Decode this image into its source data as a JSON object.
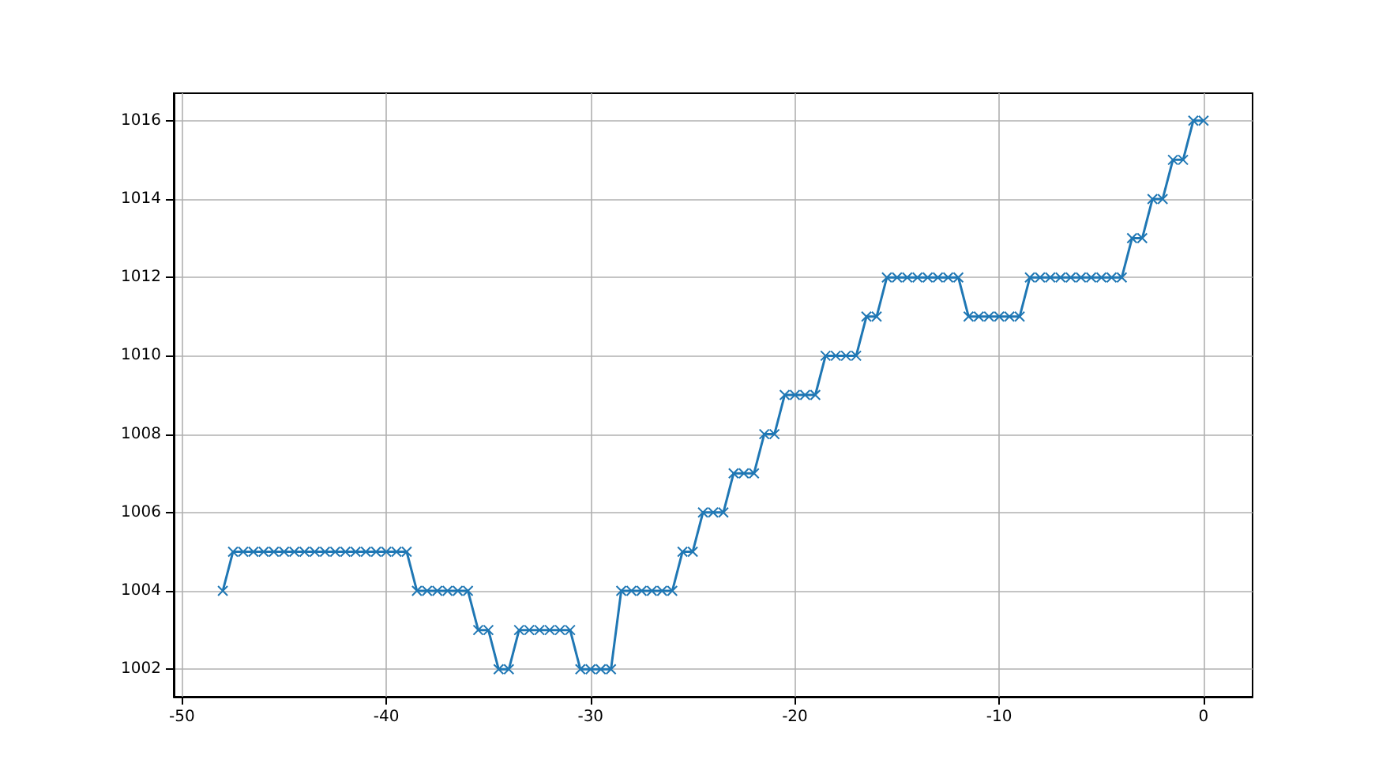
{
  "chart_data": {
    "type": "line",
    "x": [
      -48,
      -47.5,
      -47,
      -46.5,
      -46,
      -45.5,
      -45,
      -44.5,
      -44,
      -43.5,
      -43,
      -42.5,
      -42,
      -41.5,
      -41,
      -40.5,
      -40,
      -39.5,
      -39,
      -38.5,
      -38,
      -37.5,
      -37,
      -36.5,
      -36,
      -35.5,
      -35,
      -34.5,
      -34,
      -33.5,
      -33,
      -32.5,
      -32,
      -31.5,
      -31,
      -30.5,
      -30,
      -29.5,
      -29,
      -28.5,
      -28,
      -27.5,
      -27,
      -26.5,
      -26,
      -25.5,
      -25,
      -24.5,
      -24,
      -23.5,
      -23,
      -22.5,
      -22,
      -21.5,
      -21,
      -20.5,
      -20,
      -19.5,
      -19,
      -18.5,
      -18,
      -17.5,
      -17,
      -16.5,
      -16,
      -15.5,
      -15,
      -14.5,
      -14,
      -13.5,
      -13,
      -12.5,
      -12,
      -11.5,
      -11,
      -10.5,
      -10,
      -9.5,
      -9,
      -8.5,
      -8,
      -7.5,
      -7,
      -6.5,
      -6,
      -5.5,
      -5,
      -4.5,
      -4,
      -3.5,
      -3,
      -2.5,
      -2,
      -1.5,
      -1,
      -0.5,
      0
    ],
    "series": [
      {
        "color": "#1f77b4",
        "values": [
          1004,
          1005,
          1005,
          1005,
          1005,
          1005,
          1005,
          1005,
          1005,
          1005,
          1005,
          1005,
          1005,
          1005,
          1005,
          1005,
          1005,
          1005,
          1005,
          1004,
          1004,
          1004,
          1004,
          1004,
          1004,
          1003,
          1003,
          1002,
          1002,
          1003,
          1003,
          1003,
          1003,
          1003,
          1003,
          1002,
          1002,
          1002,
          1002,
          1004,
          1004,
          1004,
          1004,
          1004,
          1004,
          1005,
          1005,
          1006,
          1006,
          1006,
          1007,
          1007,
          1007,
          1008,
          1008,
          1009,
          1009,
          1009,
          1009,
          1010,
          1010,
          1010,
          1010,
          1011,
          1011,
          1012,
          1012,
          1012,
          1012,
          1012,
          1012,
          1012,
          1012,
          1011,
          1011,
          1011,
          1011,
          1011,
          1011,
          1012,
          1012,
          1012,
          1012,
          1012,
          1012,
          1012,
          1012,
          1012,
          1012,
          1013,
          1013,
          1014,
          1014,
          1015,
          1015,
          1016,
          1016
        ]
      }
    ],
    "xlim": [
      -50.4,
      2.4
    ],
    "xticks": [
      -50,
      -40,
      -30,
      -20,
      -10,
      0
    ],
    "ylim": [
      1001.3,
      1016.7
    ],
    "yticks": [
      1002,
      1004,
      1006,
      1008,
      1010,
      1012,
      1014,
      1016
    ],
    "grid": true,
    "marker": "cross",
    "line_style": "solid"
  }
}
